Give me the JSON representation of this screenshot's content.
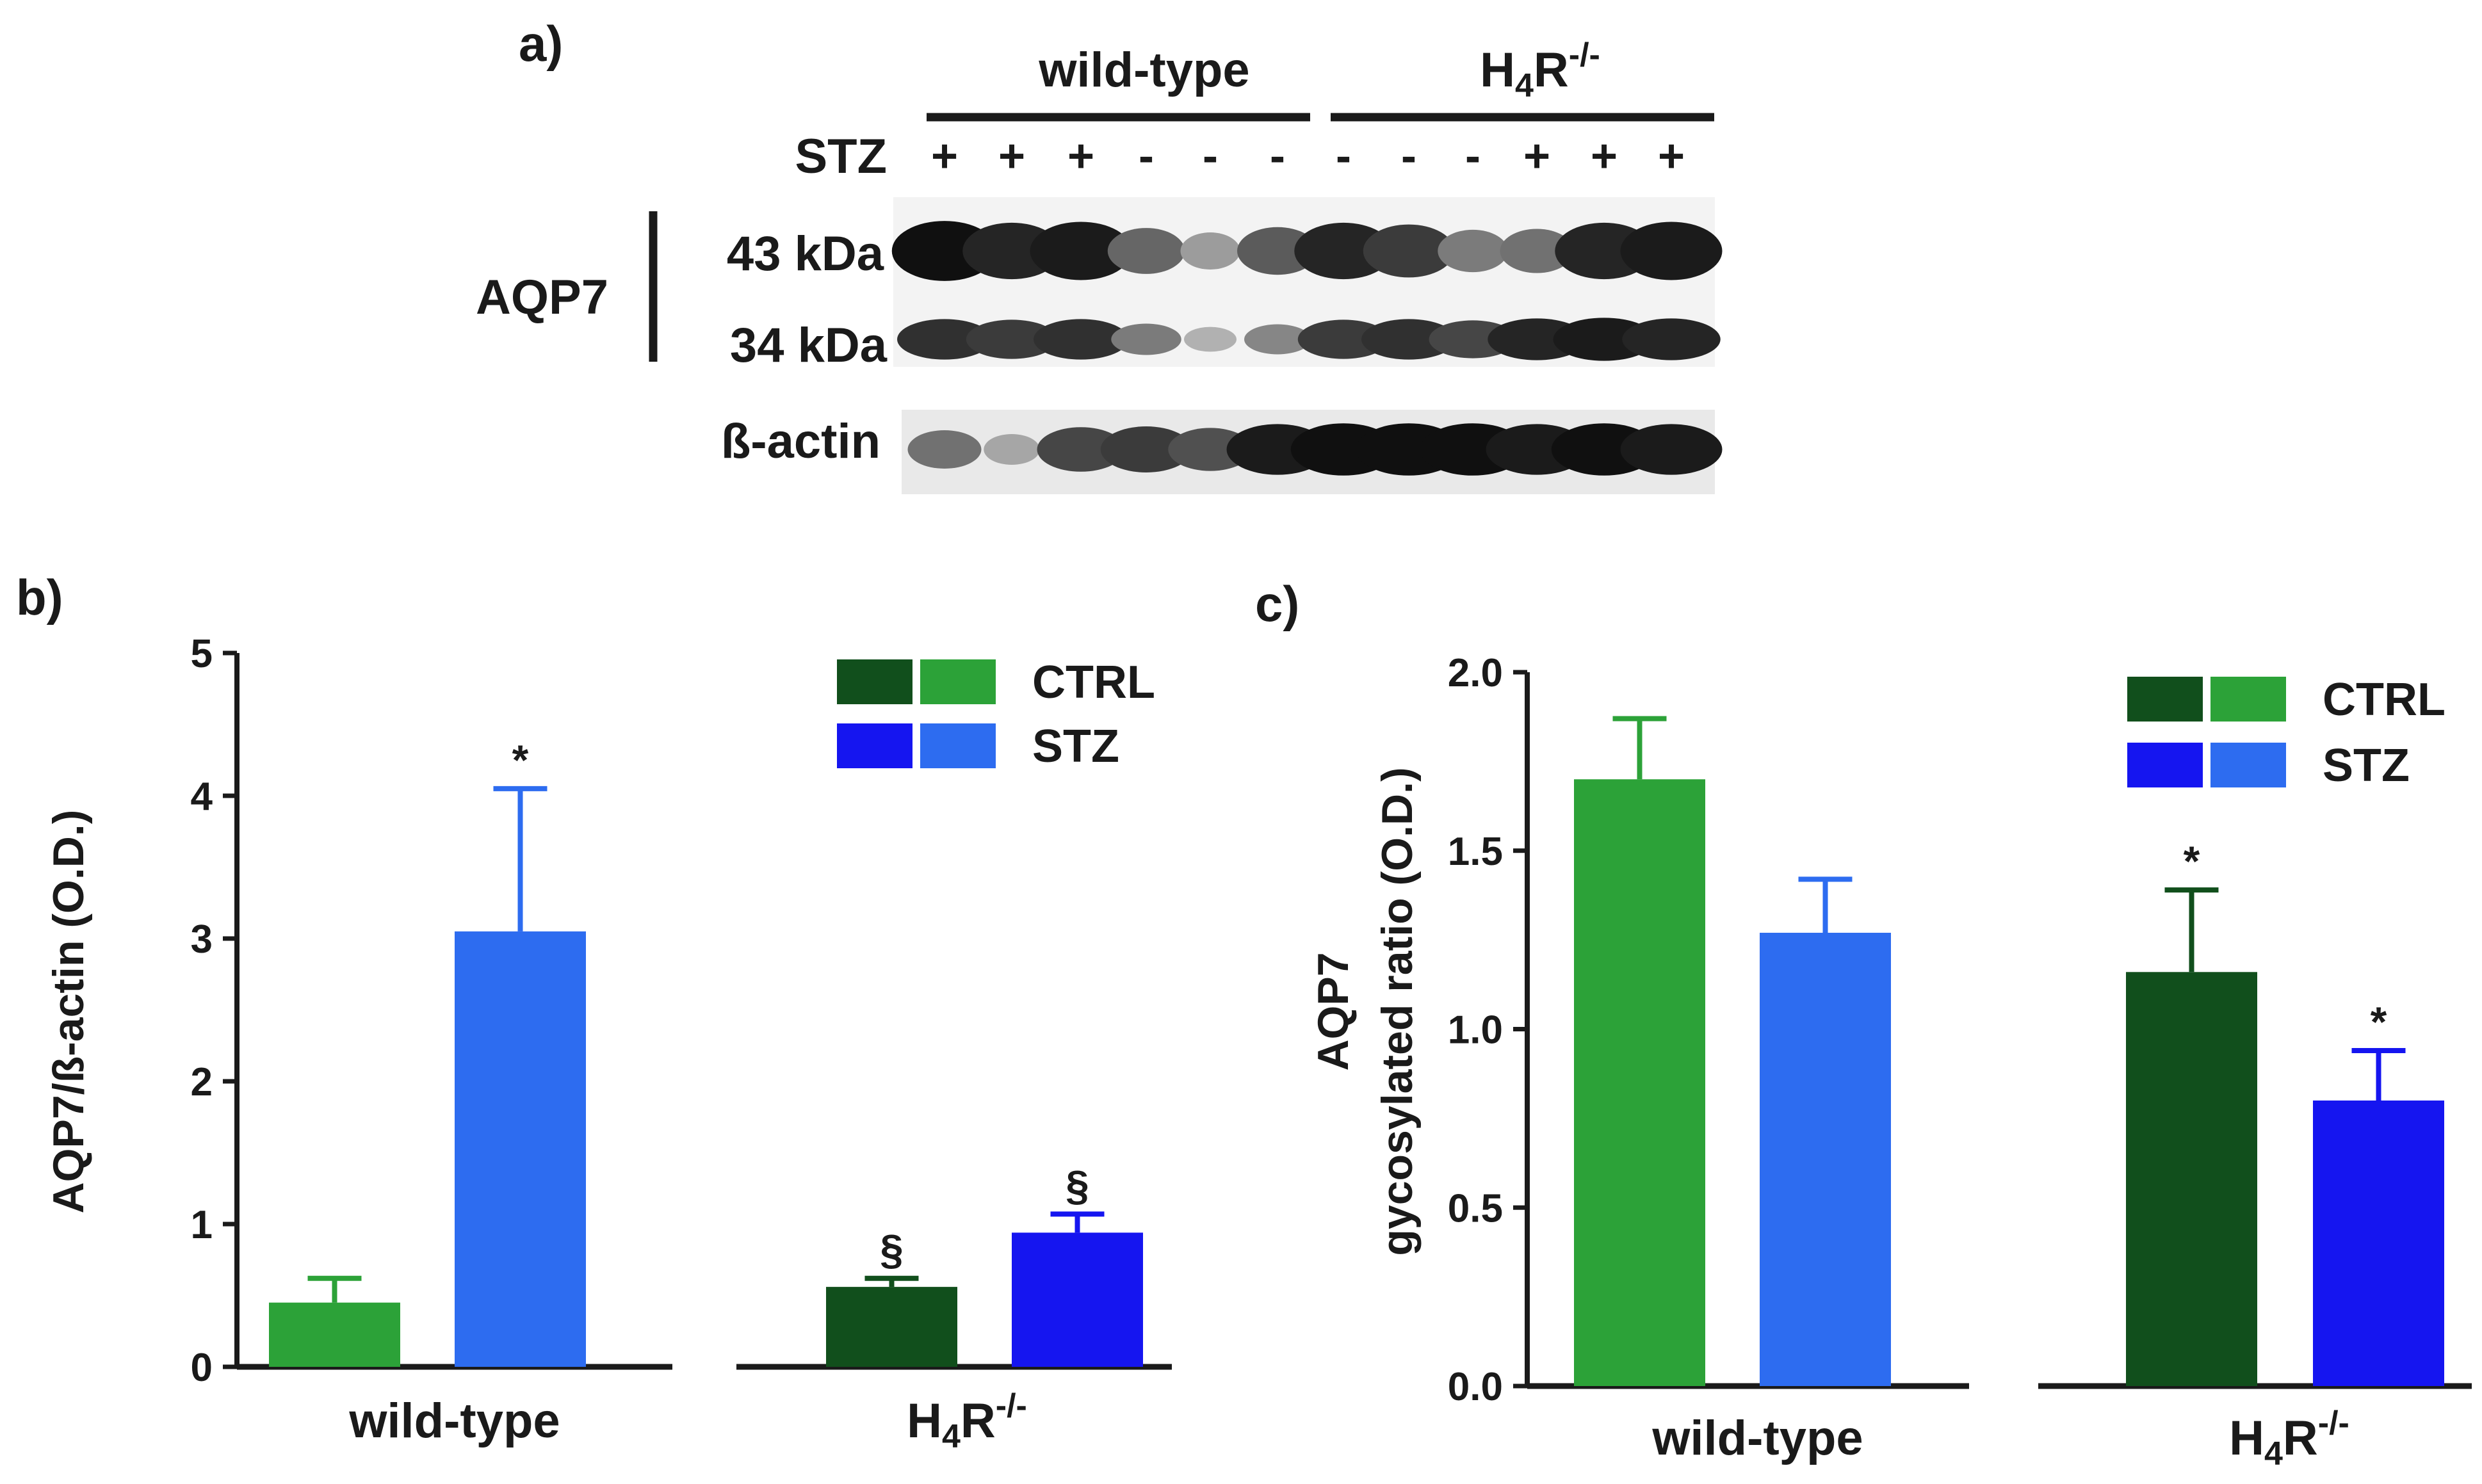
{
  "colors": {
    "wt_ctrl": "#2ca238",
    "wt_stz": "#2d6cf0",
    "ko_ctrl": "#114f1c",
    "ko_stz": "#1515f0",
    "ink": "#1a1a1a"
  },
  "blot": {
    "panel_label": "a)",
    "groups": [
      {
        "label": "wild-type"
      },
      {
        "label": "H",
        "sub": "4",
        "tail": "R",
        "sup": "-/-"
      }
    ],
    "stz_label": "STZ",
    "stz_signs": [
      "+",
      "+",
      "+",
      "-",
      "-",
      "-",
      "-",
      "-",
      "-",
      "+",
      "+",
      "+"
    ],
    "protein_label": "AQP7",
    "bands": [
      "43 kDa",
      "34 kDa"
    ],
    "loading_label": "ß-actin",
    "band_intensity": {
      "kda43": [
        0.95,
        0.85,
        0.9,
        0.55,
        0.3,
        0.6,
        0.85,
        0.75,
        0.45,
        0.5,
        0.85,
        0.9
      ],
      "kda34": [
        0.8,
        0.75,
        0.8,
        0.45,
        0.2,
        0.4,
        0.75,
        0.8,
        0.7,
        0.85,
        0.9,
        0.85
      ],
      "actin": [
        0.5,
        0.25,
        0.7,
        0.75,
        0.65,
        0.9,
        0.95,
        0.95,
        0.95,
        0.9,
        0.95,
        0.9
      ]
    }
  },
  "chart_data": [
    {
      "panel": "b)",
      "type": "bar",
      "ylabel": "AQP7/ß-actin (O.D.)",
      "ylim": [
        0,
        5
      ],
      "yticks": [
        "0",
        "1",
        "2",
        "3",
        "4",
        "5"
      ],
      "groups": [
        {
          "label": "wild-type",
          "bars": [
            {
              "name": "CTRL",
              "value": 0.45,
              "error": 0.17,
              "annotation": "",
              "color_key": "wt_ctrl"
            },
            {
              "name": "STZ",
              "value": 3.05,
              "error": 1.0,
              "annotation": "*",
              "color_key": "wt_stz"
            }
          ]
        },
        {
          "label": "H",
          "sub": "4",
          "tail": "R",
          "sup": "-/-",
          "bars": [
            {
              "name": "CTRL",
              "value": 0.56,
              "error": 0.06,
              "annotation": "§",
              "color_key": "ko_ctrl"
            },
            {
              "name": "STZ",
              "value": 0.94,
              "error": 0.13,
              "annotation": "§",
              "color_key": "ko_stz"
            }
          ]
        }
      ],
      "legend": [
        {
          "label": "CTRL",
          "colors": [
            "ko_ctrl",
            "wt_ctrl"
          ]
        },
        {
          "label": "STZ",
          "colors": [
            "ko_stz",
            "wt_stz"
          ]
        }
      ],
      "legend_position": "top-right"
    },
    {
      "panel": "c)",
      "type": "bar",
      "ylabel": "AQP7",
      "ylabel2": "gycosylated ratio (O.D.)",
      "ylim": [
        0,
        2
      ],
      "yticks": [
        "0.0",
        "0.5",
        "1.0",
        "1.5",
        "2.0"
      ],
      "groups": [
        {
          "label": "wild-type",
          "bars": [
            {
              "name": "CTRL",
              "value": 1.7,
              "error": 0.17,
              "annotation": "",
              "color_key": "wt_ctrl"
            },
            {
              "name": "STZ",
              "value": 1.27,
              "error": 0.15,
              "annotation": "",
              "color_key": "wt_stz"
            }
          ]
        },
        {
          "label": "H",
          "sub": "4",
          "tail": "R",
          "sup": "-/-",
          "bars": [
            {
              "name": "CTRL",
              "value": 1.16,
              "error": 0.23,
              "annotation": "*",
              "color_key": "ko_ctrl"
            },
            {
              "name": "STZ",
              "value": 0.8,
              "error": 0.14,
              "annotation": "*",
              "color_key": "ko_stz"
            }
          ]
        }
      ],
      "legend": [
        {
          "label": "CTRL",
          "colors": [
            "ko_ctrl",
            "wt_ctrl"
          ]
        },
        {
          "label": "STZ",
          "colors": [
            "ko_stz",
            "wt_stz"
          ]
        }
      ],
      "legend_position": "top-right"
    }
  ]
}
